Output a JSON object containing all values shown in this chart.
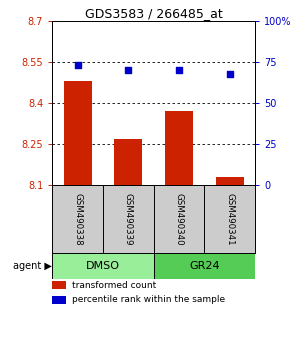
{
  "title": "GDS3583 / 266485_at",
  "samples": [
    "GSM490338",
    "GSM490339",
    "GSM490340",
    "GSM490341"
  ],
  "bar_values": [
    8.48,
    8.27,
    8.37,
    8.13
  ],
  "bar_base": 8.1,
  "percentile_values": [
    73,
    70,
    70,
    68
  ],
  "ylim_left": [
    8.1,
    8.7
  ],
  "ylim_right": [
    0,
    100
  ],
  "yticks_left": [
    8.1,
    8.25,
    8.4,
    8.55,
    8.7
  ],
  "yticks_right": [
    0,
    25,
    50,
    75,
    100
  ],
  "ytick_labels_right": [
    "0",
    "25",
    "50",
    "75",
    "100%"
  ],
  "bar_color": "#cc2200",
  "dot_color": "#0000cc",
  "bg_color": "#ffffff",
  "sample_bg": "#cccccc",
  "agent_groups": [
    {
      "label": "DMSO",
      "span": [
        0,
        2
      ],
      "color": "#99ee99"
    },
    {
      "label": "GR24",
      "span": [
        2,
        4
      ],
      "color": "#55cc55"
    }
  ],
  "legend_bar_label": "transformed count",
  "legend_dot_label": "percentile rank within the sample",
  "agent_label": "agent"
}
